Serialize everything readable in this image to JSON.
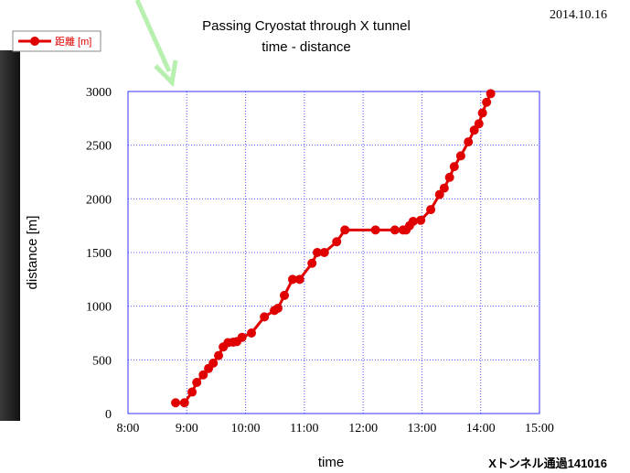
{
  "date": "2014.10.16",
  "footer": "Xトンネル通過141016",
  "chart_data": {
    "type": "line",
    "title": "Passing Cryostat through X tunnel",
    "subtitle": "time - distance",
    "x_label": "time",
    "y_label": "distance [m]",
    "x": [
      8.81,
      8.96,
      9.09,
      9.17,
      9.28,
      9.37,
      9.45,
      9.54,
      9.62,
      9.7,
      9.79,
      9.85,
      9.94,
      10.1,
      10.32,
      10.49,
      10.55,
      10.66,
      10.8,
      10.92,
      11.13,
      11.22,
      11.34,
      11.55,
      11.69,
      12.21,
      12.54,
      12.68,
      12.73,
      12.79,
      12.85,
      12.98,
      13.15,
      13.3,
      13.38,
      13.47,
      13.55,
      13.66,
      13.79,
      13.89,
      13.97,
      14.03,
      14.1,
      14.17
    ],
    "series": [
      {
        "name": "距離 [m]",
        "color": "#e00000",
        "values": [
          100,
          100,
          200,
          290,
          360,
          420,
          470,
          540,
          620,
          660,
          665,
          670,
          710,
          750,
          900,
          960,
          980,
          1100,
          1250,
          1250,
          1400,
          1500,
          1500,
          1600,
          1710,
          1710,
          1710,
          1710,
          1710,
          1750,
          1790,
          1800,
          1900,
          2040,
          2100,
          2200,
          2300,
          2400,
          2530,
          2640,
          2700,
          2800,
          2900,
          2980
        ]
      }
    ],
    "xlim": [
      8,
      15
    ],
    "xticks": [
      {
        "value": 8,
        "label": "8:00"
      },
      {
        "value": 9,
        "label": "9:00"
      },
      {
        "value": 10,
        "label": "10:00"
      },
      {
        "value": 11,
        "label": "11:00"
      },
      {
        "value": 12,
        "label": "12:00"
      },
      {
        "value": 13,
        "label": "13:00"
      },
      {
        "value": 14,
        "label": "14:00"
      },
      {
        "value": 15,
        "label": "15:00"
      }
    ],
    "ylim": [
      0,
      3000
    ],
    "yticks": [
      0,
      500,
      1000,
      1500,
      2000,
      2500,
      3000
    ],
    "grid": true,
    "legend": "top-left"
  }
}
